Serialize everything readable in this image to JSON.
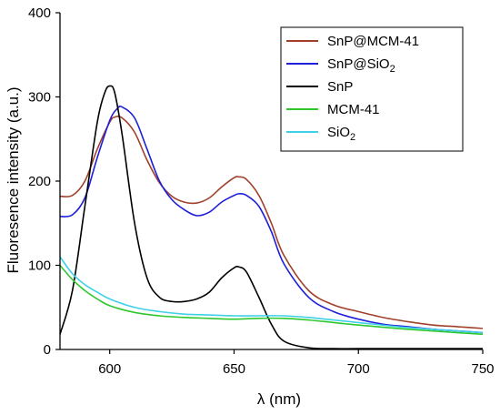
{
  "chart_data": {
    "type": "line",
    "title": "",
    "xlabel": "λ (nm)",
    "ylabel": "Fluoresence intensity (a.u.)",
    "xlim": [
      580,
      750
    ],
    "ylim": [
      0,
      400
    ],
    "xticks": [
      600,
      650,
      700,
      750
    ],
    "yticks": [
      0,
      100,
      200,
      300,
      400
    ],
    "grid": false,
    "legend_position": "top-right",
    "series": [
      {
        "name": "SnP@MCM-41",
        "legend_main": "SnP@MCM-41",
        "legend_sub": "",
        "color": "#a0402a",
        "x": [
          580,
          585,
          590,
          595,
          600,
          602,
          605,
          610,
          615,
          620,
          625,
          630,
          635,
          640,
          645,
          650,
          652,
          655,
          660,
          665,
          670,
          680,
          690,
          700,
          710,
          720,
          730,
          740,
          750
        ],
        "y": [
          182,
          183,
          200,
          238,
          270,
          276,
          275,
          258,
          225,
          198,
          182,
          175,
          174,
          180,
          193,
          204,
          205,
          202,
          183,
          150,
          112,
          70,
          53,
          45,
          38,
          33,
          29,
          27,
          25
        ]
      },
      {
        "name": "SnP@SiO2",
        "legend_main": "SnP@SiO",
        "legend_sub": "2",
        "color": "#1f1fd8",
        "x": [
          580,
          585,
          590,
          595,
          600,
          603,
          605,
          610,
          615,
          620,
          625,
          630,
          635,
          640,
          645,
          650,
          652,
          655,
          660,
          665,
          670,
          680,
          690,
          700,
          710,
          720,
          730,
          740,
          750
        ],
        "y": [
          158,
          160,
          180,
          228,
          272,
          286,
          288,
          275,
          238,
          200,
          178,
          166,
          159,
          163,
          175,
          183,
          185,
          183,
          170,
          140,
          102,
          62,
          45,
          36,
          30,
          27,
          24,
          22,
          20
        ]
      },
      {
        "name": "SnP",
        "legend_main": "SnP",
        "legend_sub": "",
        "color": "#000000",
        "x": [
          580,
          585,
          590,
          595,
          598,
          600,
          602,
          605,
          610,
          615,
          620,
          625,
          630,
          635,
          640,
          645,
          650,
          652,
          655,
          660,
          665,
          670,
          680,
          690,
          700,
          720,
          750
        ],
        "y": [
          18,
          70,
          170,
          270,
          305,
          313,
          305,
          255,
          150,
          85,
          62,
          57,
          57,
          60,
          68,
          85,
          97,
          98,
          92,
          62,
          30,
          10,
          2,
          1,
          1,
          1,
          1
        ]
      },
      {
        "name": "MCM-41",
        "legend_main": "MCM-41",
        "legend_sub": "",
        "color": "#2ec82e",
        "x": [
          580,
          585,
          590,
          595,
          600,
          610,
          620,
          630,
          640,
          650,
          660,
          670,
          680,
          690,
          700,
          720,
          750
        ],
        "y": [
          100,
          83,
          70,
          60,
          52,
          44,
          40,
          38,
          37,
          36,
          37,
          37,
          35,
          32,
          29,
          24,
          18
        ]
      },
      {
        "name": "SiO2",
        "legend_main": "SiO",
        "legend_sub": "2",
        "color": "#3fd0e8",
        "x": [
          580,
          585,
          590,
          595,
          600,
          610,
          620,
          630,
          640,
          650,
          660,
          670,
          680,
          690,
          700,
          720,
          750
        ],
        "y": [
          110,
          90,
          77,
          68,
          60,
          50,
          45,
          42,
          41,
          40,
          40,
          40,
          38,
          35,
          32,
          26,
          20
        ]
      }
    ]
  }
}
